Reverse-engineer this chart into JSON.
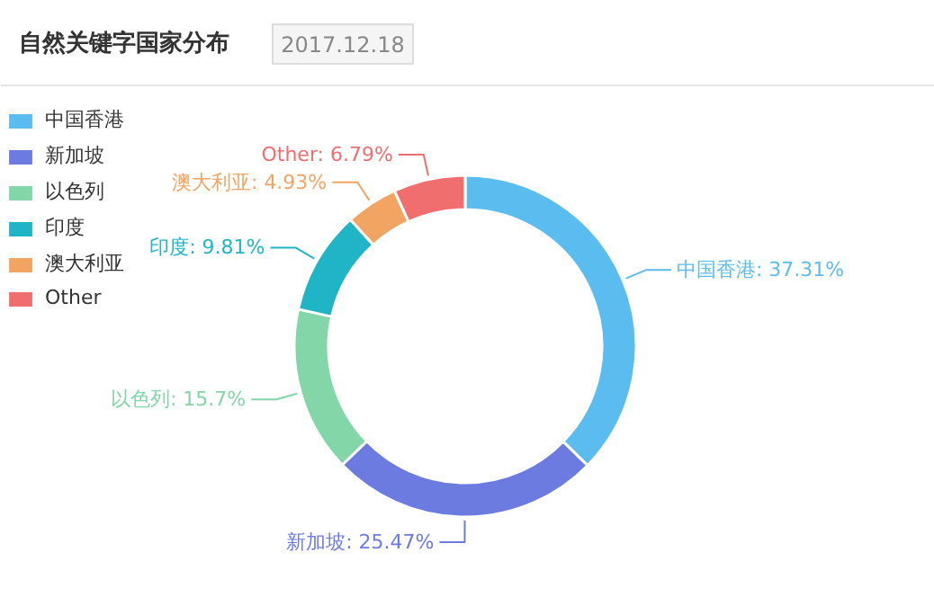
{
  "chart_data": {
    "type": "donut",
    "title": "自然关键字国家分布",
    "subtitle": "2017.12.18",
    "categories": [
      "中国香港",
      "新加坡",
      "以色列",
      "印度",
      "澳大利亚",
      "Other"
    ],
    "values": [
      37.31,
      25.47,
      15.7,
      9.81,
      4.93,
      6.79
    ],
    "colors": [
      "#5bbcf0",
      "#6b7be0",
      "#82d6a8",
      "#1fb5c6",
      "#f2a462",
      "#f06e6e"
    ],
    "value_labels": [
      "中国香港: 37.31%",
      "新加坡: 25.47%",
      "以色列: 15.7%",
      "印度: 9.81%",
      "澳大利亚: 4.93%",
      "Other: 6.79%"
    ],
    "legend": "top left"
  }
}
